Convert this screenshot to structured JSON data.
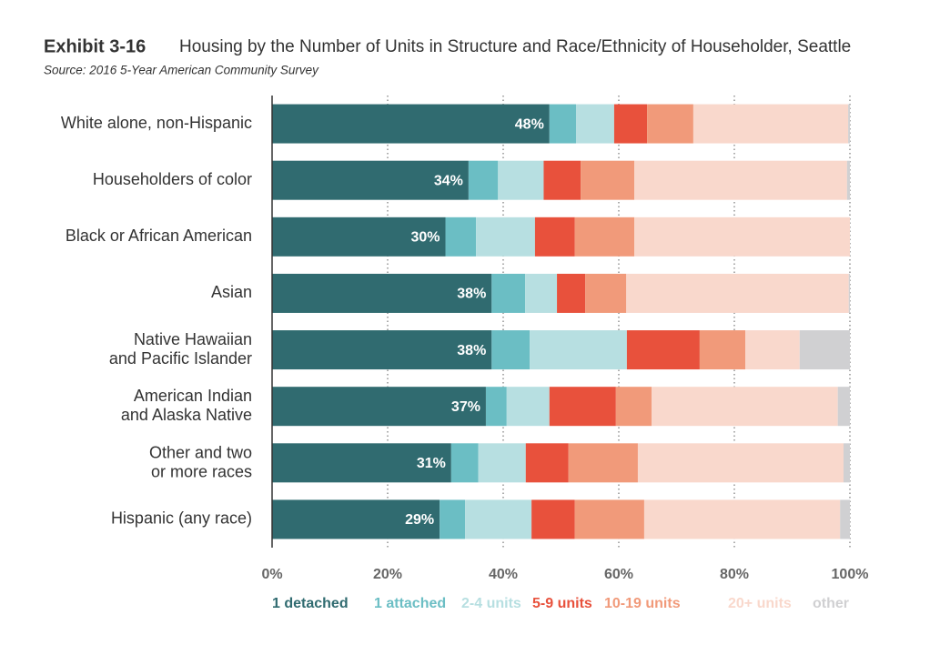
{
  "chart_data": {
    "type": "stacked-bar-horizontal",
    "label": "Exhibit 3-16",
    "title": "Housing by the Number of Units in Structure and Race/Ethnicity of Householder, Seattle",
    "subtitle": "Source: 2016 5-Year American Community Survey",
    "categories": [
      "White alone, non-Hispanic",
      "Householders of color",
      "Black or African American",
      "Asian",
      "Native Hawaiian\nand Pacific Islander",
      "American Indian\nand Alaska Native",
      "Other and two\nor more races",
      "Hispanic (any race)"
    ],
    "series": [
      {
        "name": "1 detached",
        "color": "#306b70",
        "values": [
          48,
          34,
          30,
          38,
          38,
          37,
          31,
          29
        ],
        "value_labels": [
          "48%",
          "34%",
          "30%",
          "38%",
          "38%",
          "37%",
          "31%",
          "29%"
        ]
      },
      {
        "name": "1 attached",
        "color": "#6bbec4",
        "values": [
          4.6,
          5.1,
          5.3,
          5.8,
          6.6,
          3.6,
          4.7,
          4.4
        ]
      },
      {
        "name": "2-4 units",
        "color": "#b7dfe1",
        "values": [
          6.6,
          7.9,
          10.2,
          5.5,
          16.8,
          7.4,
          8.2,
          11.5
        ]
      },
      {
        "name": "5-9 units",
        "color": "#e8513c",
        "values": [
          5.7,
          6.4,
          6.9,
          4.9,
          12.6,
          11.5,
          7.4,
          7.5
        ]
      },
      {
        "name": "10-19 units",
        "color": "#f19a7a",
        "values": [
          8,
          9.3,
          10.3,
          7.1,
          7.9,
          6.2,
          12,
          12
        ]
      },
      {
        "name": "20+ units",
        "color": "#f9d8cc",
        "values": [
          26.8,
          36.8,
          37.3,
          38.5,
          9.4,
          32.2,
          35.6,
          33.9
        ]
      },
      {
        "name": "other",
        "color": "#d0d0d2",
        "values": [
          0.3,
          0.5,
          0,
          0.2,
          8.7,
          2.1,
          1.1,
          1.7
        ]
      }
    ],
    "xlim": [
      0,
      100
    ],
    "xticks": [
      {
        "value": 0,
        "label": "0%"
      },
      {
        "value": 20,
        "label": "20%"
      },
      {
        "value": 40,
        "label": "40%"
      },
      {
        "value": 60,
        "label": "60%"
      },
      {
        "value": 80,
        "label": "80%"
      },
      {
        "value": 100,
        "label": "100%"
      }
    ],
    "grid": true
  }
}
